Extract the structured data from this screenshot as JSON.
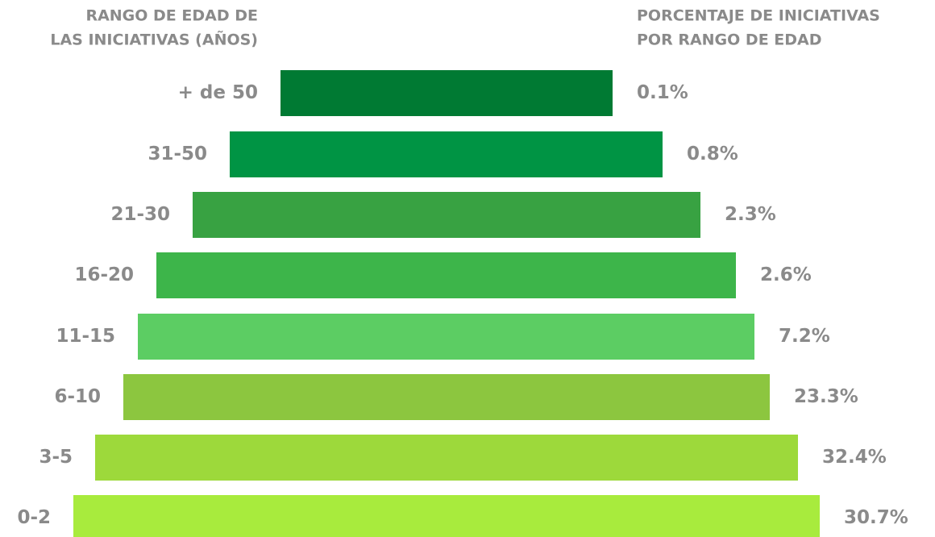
{
  "chart_data": {
    "type": "funnel",
    "header_left": [
      "RANGO DE EDAD DE",
      "LAS INICIATIVAS (AÑOS)"
    ],
    "header_right": [
      "PORCENTAJE DE INICIATIVAS",
      "POR RANGO DE EDAD"
    ],
    "categories": [
      "+ de 50",
      "31-50",
      "21-30",
      "16-20",
      "11-15",
      "6-10",
      "3-5",
      "0-2"
    ],
    "values": [
      0.1,
      0.8,
      2.3,
      2.6,
      7.2,
      23.3,
      32.4,
      30.7
    ],
    "value_labels": [
      "0.1%",
      "0.8%",
      "2.3%",
      "2.6%",
      "7.2%",
      "23.3%",
      "32.4%",
      "30.7%"
    ],
    "colors": [
      "#007a33",
      "#009444",
      "#38a242",
      "#3db54a",
      "#5ccd63",
      "#8cc63f",
      "#9dd93b",
      "#a8eb3d"
    ]
  }
}
